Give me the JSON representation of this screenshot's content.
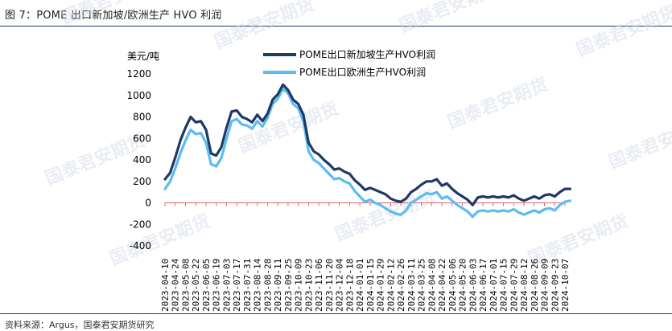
{
  "figure": {
    "title": "图 7：POME 出口新加坡/欧洲生产 HVO 利润",
    "source": "资料来源：Argus，国泰君安期货研究",
    "watermark": "国泰君安期货"
  },
  "chart_data": {
    "type": "line",
    "title": "",
    "ylabel": "美元/吨",
    "xlabel": "",
    "ylim": [
      -400,
      1200
    ],
    "yticks": [
      -400,
      -200,
      0,
      200,
      400,
      600,
      800,
      1000,
      1200
    ],
    "xtick_labels": [
      "2023-04-10",
      "2023-04-24",
      "2023-05-08",
      "2023-05-22",
      "2023-06-05",
      "2023-06-19",
      "2023-07-03",
      "2023-07-17",
      "2023-07-31",
      "2023-08-14",
      "2023-08-28",
      "2023-09-11",
      "2023-09-25",
      "2023-10-09",
      "2023-10-23",
      "2023-11-06",
      "2023-11-20",
      "2023-12-04",
      "2023-12-18",
      "2024-01-01",
      "2024-01-15",
      "2024-01-29",
      "2024-02-12",
      "2024-02-26",
      "2024-03-11",
      "2024-03-25",
      "2024-04-08",
      "2024-04-22",
      "2024-05-06",
      "2024-05-20",
      "2024-06-03",
      "2024-06-17",
      "2024-07-01",
      "2024-07-15",
      "2024-07-29",
      "2024-08-12",
      "2024-08-26",
      "2024-09-09",
      "2024-09-23",
      "2024-10-07"
    ],
    "legend_position": "top",
    "grid": false,
    "zero_line_color": "#e06666",
    "series": [
      {
        "name": "POME出口新加坡生产HVO利润",
        "color": "#1f3864",
        "points": [
          [
            "2023-04-10",
            220
          ],
          [
            "2023-04-17",
            280
          ],
          [
            "2023-04-24",
            420
          ],
          [
            "2023-05-01",
            580
          ],
          [
            "2023-05-08",
            700
          ],
          [
            "2023-05-15",
            800
          ],
          [
            "2023-05-22",
            750
          ],
          [
            "2023-05-29",
            760
          ],
          [
            "2023-06-05",
            680
          ],
          [
            "2023-06-12",
            460
          ],
          [
            "2023-06-19",
            440
          ],
          [
            "2023-06-26",
            520
          ],
          [
            "2023-07-03",
            700
          ],
          [
            "2023-07-10",
            850
          ],
          [
            "2023-07-17",
            860
          ],
          [
            "2023-07-24",
            800
          ],
          [
            "2023-07-31",
            780
          ],
          [
            "2023-08-07",
            750
          ],
          [
            "2023-08-14",
            820
          ],
          [
            "2023-08-21",
            760
          ],
          [
            "2023-08-28",
            830
          ],
          [
            "2023-09-04",
            960
          ],
          [
            "2023-09-11",
            1010
          ],
          [
            "2023-09-18",
            1100
          ],
          [
            "2023-09-25",
            1050
          ],
          [
            "2023-10-02",
            960
          ],
          [
            "2023-10-09",
            920
          ],
          [
            "2023-10-16",
            820
          ],
          [
            "2023-10-23",
            560
          ],
          [
            "2023-10-30",
            480
          ],
          [
            "2023-11-06",
            450
          ],
          [
            "2023-11-13",
            400
          ],
          [
            "2023-11-20",
            360
          ],
          [
            "2023-11-27",
            310
          ],
          [
            "2023-12-04",
            320
          ],
          [
            "2023-12-11",
            290
          ],
          [
            "2023-12-18",
            270
          ],
          [
            "2023-12-25",
            210
          ],
          [
            "2024-01-01",
            170
          ],
          [
            "2024-01-08",
            120
          ],
          [
            "2024-01-15",
            140
          ],
          [
            "2024-01-22",
            120
          ],
          [
            "2024-01-29",
            100
          ],
          [
            "2024-02-05",
            80
          ],
          [
            "2024-02-12",
            40
          ],
          [
            "2024-02-19",
            20
          ],
          [
            "2024-02-26",
            10
          ],
          [
            "2024-03-04",
            40
          ],
          [
            "2024-03-11",
            100
          ],
          [
            "2024-03-18",
            130
          ],
          [
            "2024-03-25",
            170
          ],
          [
            "2024-04-01",
            200
          ],
          [
            "2024-04-08",
            200
          ],
          [
            "2024-04-15",
            220
          ],
          [
            "2024-04-22",
            160
          ],
          [
            "2024-04-29",
            180
          ],
          [
            "2024-05-06",
            130
          ],
          [
            "2024-05-13",
            90
          ],
          [
            "2024-05-20",
            60
          ],
          [
            "2024-05-27",
            30
          ],
          [
            "2024-06-03",
            -20
          ],
          [
            "2024-06-10",
            50
          ],
          [
            "2024-06-17",
            60
          ],
          [
            "2024-06-24",
            50
          ],
          [
            "2024-07-01",
            60
          ],
          [
            "2024-07-08",
            50
          ],
          [
            "2024-07-15",
            60
          ],
          [
            "2024-07-22",
            50
          ],
          [
            "2024-07-29",
            70
          ],
          [
            "2024-08-05",
            40
          ],
          [
            "2024-08-12",
            20
          ],
          [
            "2024-08-19",
            40
          ],
          [
            "2024-08-26",
            60
          ],
          [
            "2024-09-02",
            40
          ],
          [
            "2024-09-09",
            70
          ],
          [
            "2024-09-16",
            80
          ],
          [
            "2024-09-23",
            60
          ],
          [
            "2024-09-30",
            100
          ],
          [
            "2024-10-07",
            130
          ],
          [
            "2024-10-14",
            130
          ]
        ]
      },
      {
        "name": "POME出口欧洲生产HVO利润",
        "color": "#5bbcf0",
        "points": [
          [
            "2023-04-10",
            130
          ],
          [
            "2023-04-17",
            200
          ],
          [
            "2023-04-24",
            320
          ],
          [
            "2023-05-01",
            460
          ],
          [
            "2023-05-08",
            580
          ],
          [
            "2023-05-15",
            680
          ],
          [
            "2023-05-22",
            640
          ],
          [
            "2023-05-29",
            650
          ],
          [
            "2023-06-05",
            560
          ],
          [
            "2023-06-12",
            360
          ],
          [
            "2023-06-19",
            340
          ],
          [
            "2023-06-26",
            420
          ],
          [
            "2023-07-03",
            600
          ],
          [
            "2023-07-10",
            760
          ],
          [
            "2023-07-17",
            780
          ],
          [
            "2023-07-24",
            730
          ],
          [
            "2023-07-31",
            720
          ],
          [
            "2023-08-07",
            690
          ],
          [
            "2023-08-14",
            760
          ],
          [
            "2023-08-21",
            710
          ],
          [
            "2023-08-28",
            790
          ],
          [
            "2023-09-04",
            920
          ],
          [
            "2023-09-11",
            970
          ],
          [
            "2023-09-18",
            1060
          ],
          [
            "2023-09-25",
            1020
          ],
          [
            "2023-10-02",
            920
          ],
          [
            "2023-10-09",
            880
          ],
          [
            "2023-10-16",
            760
          ],
          [
            "2023-10-23",
            480
          ],
          [
            "2023-10-30",
            400
          ],
          [
            "2023-11-06",
            370
          ],
          [
            "2023-11-13",
            320
          ],
          [
            "2023-11-20",
            270
          ],
          [
            "2023-11-27",
            220
          ],
          [
            "2023-12-04",
            230
          ],
          [
            "2023-12-11",
            200
          ],
          [
            "2023-12-18",
            180
          ],
          [
            "2023-12-25",
            110
          ],
          [
            "2024-01-01",
            60
          ],
          [
            "2024-01-08",
            10
          ],
          [
            "2024-01-15",
            30
          ],
          [
            "2024-01-22",
            0
          ],
          [
            "2024-01-29",
            -20
          ],
          [
            "2024-02-05",
            -50
          ],
          [
            "2024-02-12",
            -80
          ],
          [
            "2024-02-19",
            -100
          ],
          [
            "2024-02-26",
            -110
          ],
          [
            "2024-03-04",
            -70
          ],
          [
            "2024-03-11",
            0
          ],
          [
            "2024-03-18",
            30
          ],
          [
            "2024-03-25",
            60
          ],
          [
            "2024-04-01",
            90
          ],
          [
            "2024-04-08",
            80
          ],
          [
            "2024-04-15",
            100
          ],
          [
            "2024-04-22",
            40
          ],
          [
            "2024-04-29",
            60
          ],
          [
            "2024-05-06",
            20
          ],
          [
            "2024-05-13",
            -20
          ],
          [
            "2024-05-20",
            -50
          ],
          [
            "2024-05-27",
            -80
          ],
          [
            "2024-06-03",
            -130
          ],
          [
            "2024-06-10",
            -80
          ],
          [
            "2024-06-17",
            -70
          ],
          [
            "2024-06-24",
            -80
          ],
          [
            "2024-07-01",
            -70
          ],
          [
            "2024-07-08",
            -80
          ],
          [
            "2024-07-15",
            -70
          ],
          [
            "2024-07-22",
            -80
          ],
          [
            "2024-07-29",
            -60
          ],
          [
            "2024-08-05",
            -90
          ],
          [
            "2024-08-12",
            -110
          ],
          [
            "2024-08-19",
            -90
          ],
          [
            "2024-08-26",
            -70
          ],
          [
            "2024-09-02",
            -90
          ],
          [
            "2024-09-09",
            -60
          ],
          [
            "2024-09-16",
            -50
          ],
          [
            "2024-09-23",
            -70
          ],
          [
            "2024-09-30",
            -20
          ],
          [
            "2024-10-07",
            10
          ],
          [
            "2024-10-14",
            20
          ]
        ]
      }
    ]
  }
}
